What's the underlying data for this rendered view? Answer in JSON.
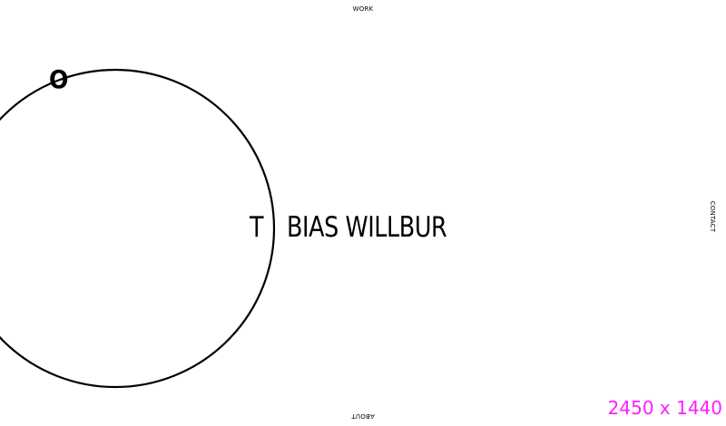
{
  "nav": {
    "work": "WORK",
    "about": "ABOUT",
    "contact": "CONTACT"
  },
  "hero": {
    "first_letter": "T",
    "orbit_letter": "O",
    "rest": "BIAS WILLBUR"
  },
  "overlay": {
    "dimensions": "2450 x 1440"
  },
  "colors": {
    "text": "#000000",
    "background": "#ffffff",
    "overlay": "#ff1dff"
  }
}
